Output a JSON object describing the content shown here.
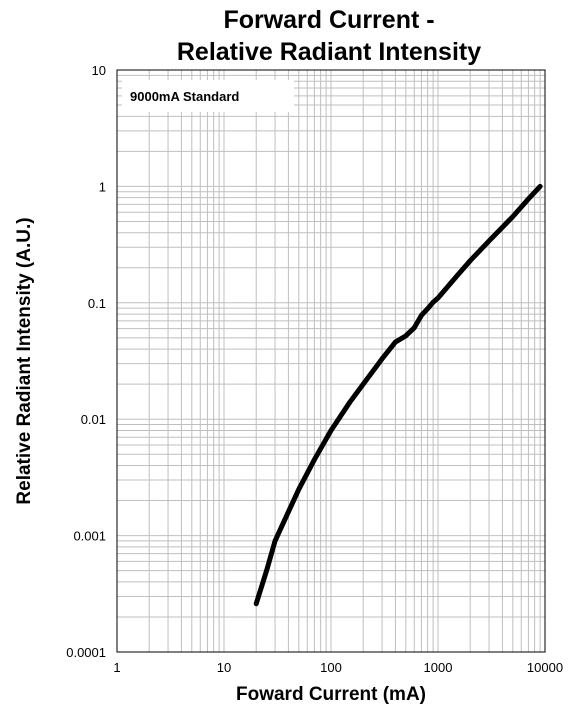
{
  "chart_data": {
    "type": "line",
    "title": [
      "Forward Current -",
      "Relative Radiant Intensity"
    ],
    "xlabel": "Foward Current (mA)",
    "ylabel": "Relative Radiant Intensity (A.U.)",
    "x_scale": "log",
    "y_scale": "log",
    "xlim": [
      1,
      10000
    ],
    "ylim": [
      0.0001,
      10
    ],
    "x_ticks": [
      1,
      10,
      100,
      1000,
      10000
    ],
    "x_tick_labels": [
      "1",
      "10",
      "100",
      "1000",
      "10000"
    ],
    "y_ticks": [
      0.0001,
      0.001,
      0.01,
      0.1,
      1,
      10
    ],
    "y_tick_labels": [
      "0.0001",
      "0.001",
      "0.01",
      "0.1",
      "1",
      "10"
    ],
    "grid": true,
    "legend_text": "9000mA Standard",
    "legend_placement": "top-left",
    "line_color": "#000000",
    "grid_color": "#bfbfbf",
    "series": [
      {
        "x": [
          20,
          25,
          30,
          40,
          50,
          70,
          100,
          150,
          200,
          300,
          400,
          500,
          600,
          700,
          800,
          900,
          1000,
          1500,
          2000,
          3000,
          5000,
          7000,
          9000
        ],
        "y": [
          0.00026,
          0.0005,
          0.0009,
          0.0016,
          0.0025,
          0.0045,
          0.008,
          0.014,
          0.02,
          0.033,
          0.046,
          0.052,
          0.061,
          0.078,
          0.089,
          0.101,
          0.11,
          0.17,
          0.23,
          0.34,
          0.55,
          0.78,
          1.0
        ]
      }
    ]
  }
}
